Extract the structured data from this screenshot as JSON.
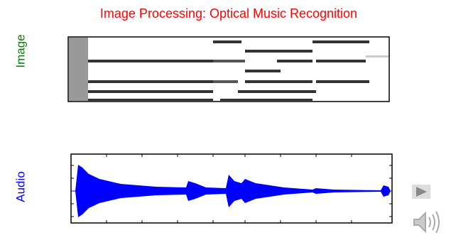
{
  "slide": {
    "title": "Image Processing: Optical Music Recognition",
    "image_label": "Image",
    "audio_label": "Audio"
  }
}
